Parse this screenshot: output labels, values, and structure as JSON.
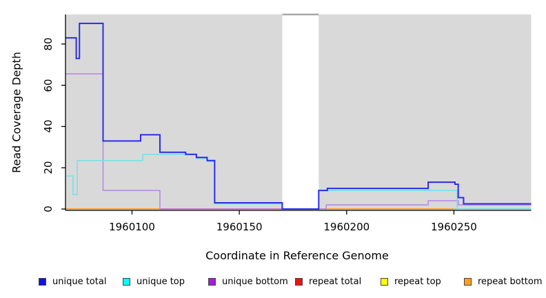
{
  "chart_data": {
    "type": "line",
    "subtype": "step-coverage-plot",
    "title": "",
    "xlabel": "Coordinate in Reference Genome",
    "ylabel": "Read Coverage Depth",
    "xlim": [
      1960069,
      1960286
    ],
    "ylim": [
      0,
      94
    ],
    "x_ticks": [
      1960100,
      1960150,
      1960200,
      1960250
    ],
    "y_ticks": [
      0,
      20,
      40,
      60,
      80
    ],
    "grid": false,
    "plot_background": "#d9d9d9",
    "gap_region": {
      "start": 1960170,
      "end": 1960187,
      "fill": "#ffffff",
      "top_border": "#a8a8a8"
    },
    "series": [
      {
        "name": "unique bottom",
        "color": "#b583e4",
        "width": 1.5,
        "steps": [
          [
            1960069,
            65.5
          ],
          [
            1960086.5,
            9
          ],
          [
            1960113,
            0
          ],
          [
            1960170,
            0
          ],
          [
            1960190.5,
            2
          ],
          [
            1960238,
            4
          ],
          [
            1960252,
            2
          ]
        ]
      },
      {
        "name": "unique top",
        "color": "#6fe3ea",
        "width": 1.5,
        "steps": [
          [
            1960069,
            16
          ],
          [
            1960072.5,
            7
          ],
          [
            1960074.5,
            23.5
          ],
          [
            1960105,
            26.5
          ],
          [
            1960130,
            24.5
          ],
          [
            1960135,
            23
          ],
          [
            1960138.5,
            2.5
          ],
          [
            1960170,
            0
          ],
          [
            1960187,
            9
          ],
          [
            1960251.5,
            0
          ]
        ]
      },
      {
        "name": "unique total",
        "color": "#2b2be8",
        "width": 2,
        "steps": [
          [
            1960069,
            83
          ],
          [
            1960074,
            73
          ],
          [
            1960075.5,
            90
          ],
          [
            1960086.5,
            33
          ],
          [
            1960104,
            36
          ],
          [
            1960113,
            27.5
          ],
          [
            1960125,
            26.5
          ],
          [
            1960130,
            25
          ],
          [
            1960135,
            23.5
          ],
          [
            1960138.5,
            3
          ],
          [
            1960170,
            0
          ],
          [
            1960187,
            9
          ],
          [
            1960191,
            10
          ],
          [
            1960238,
            13
          ],
          [
            1960250.5,
            12
          ],
          [
            1960252,
            5.5
          ],
          [
            1960254.5,
            2.5
          ]
        ]
      }
    ],
    "baseline_segments": [
      {
        "series": "repeat bottom",
        "color": "#ff9d2e",
        "start": 1960069,
        "end": 1960113,
        "value": 0
      },
      {
        "series": "repeat total",
        "color": "#d85f88",
        "start": 1960113,
        "end": 1960170,
        "value": 0
      },
      {
        "series": "repeat bottom",
        "color": "#ff9d2e",
        "start": 1960187,
        "end": 1960250,
        "value": 0
      },
      {
        "series": "repeat top",
        "color": "#93d398",
        "start": 1960250,
        "end": 1960286,
        "value": 0
      }
    ],
    "legend_position": "bottom",
    "legend": [
      {
        "label": "unique total",
        "color": "#1212e0"
      },
      {
        "label": "unique top",
        "color": "#00ffff"
      },
      {
        "label": "unique bottom",
        "color": "#a21fd4"
      },
      {
        "label": "repeat total",
        "color": "#ee1111"
      },
      {
        "label": "repeat top",
        "color": "#ffff00"
      },
      {
        "label": "repeat bottom",
        "color": "#ffa022"
      }
    ]
  },
  "labels": {
    "xlabel": "Coordinate in Reference Genome",
    "ylabel": "Read Coverage Depth"
  },
  "layout_colors": {
    "axis": "#000000",
    "plot_bg": "#d9d9d9",
    "figure_bg": "#ffffff"
  }
}
